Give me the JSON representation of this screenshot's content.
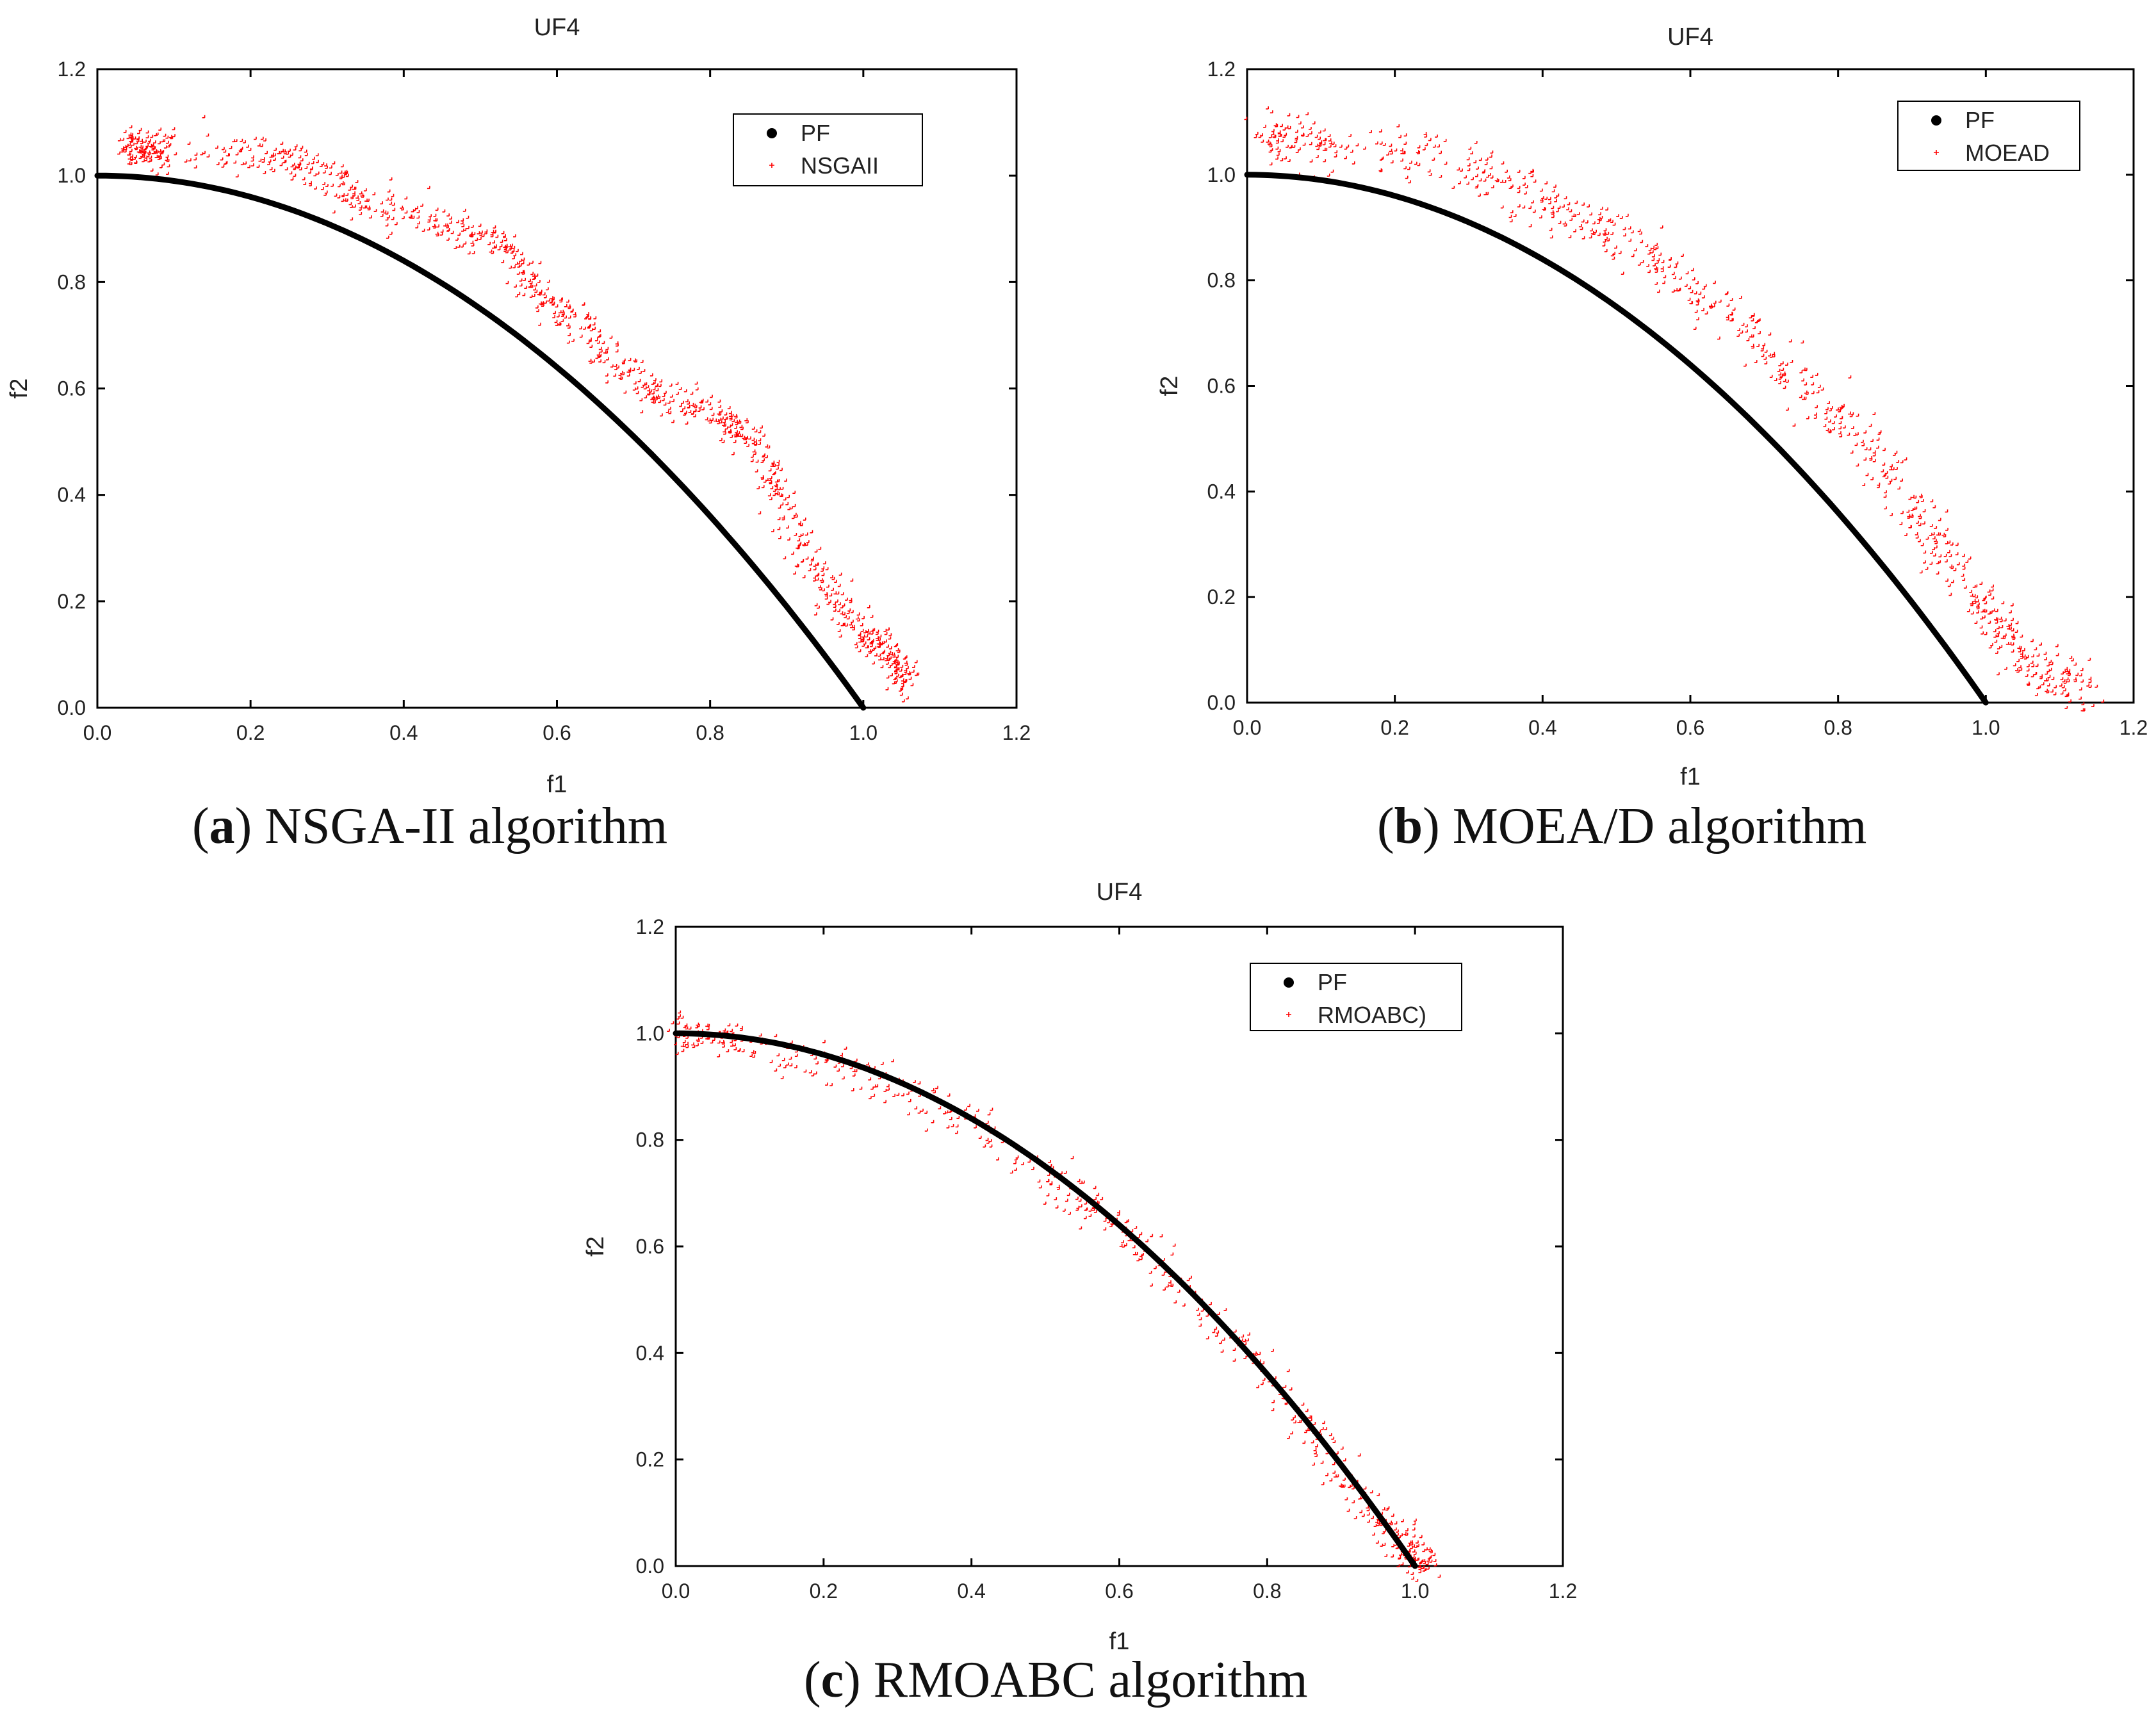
{
  "figure": {
    "captions": [
      {
        "letter": "a",
        "open": "(",
        "close": ")",
        "text": " NSGA-II algorithm"
      },
      {
        "letter": "b",
        "open": "(",
        "close": ")",
        "text": " MOEA/D algorithm"
      },
      {
        "letter": "c",
        "open": "(",
        "close": ")",
        "text": " RMOABC algorithm"
      }
    ]
  },
  "colors": {
    "pf": "#000000",
    "algo": "#ff0000",
    "axis": "#000000"
  },
  "chart_data": [
    {
      "type": "scatter",
      "title": "UF4",
      "xlabel": "f1",
      "ylabel": "f2",
      "xlim": [
        0.0,
        1.2
      ],
      "ylim": [
        0.0,
        1.2
      ],
      "xticks": [
        "0.0",
        "0.2",
        "0.4",
        "0.6",
        "0.8",
        "1.0",
        "1.2"
      ],
      "yticks": [
        "0.0",
        "0.2",
        "0.4",
        "0.6",
        "0.8",
        "1.0",
        "1.2"
      ],
      "legend_position": "top-right",
      "series": [
        {
          "name": "PF",
          "marker": "dot",
          "function": "f2 = 1 - f1^2",
          "x_range": [
            0.0,
            1.0
          ]
        },
        {
          "name": "NSGAII",
          "marker": "cross",
          "points": [
            [
              0.04,
              1.06
            ],
            [
              0.05,
              1.05
            ],
            [
              0.07,
              1.05
            ],
            [
              0.09,
              1.045
            ],
            [
              0.2,
              1.035
            ],
            [
              0.25,
              1.025
            ],
            [
              0.29,
              1.02
            ],
            [
              0.33,
              0.96
            ],
            [
              0.38,
              0.935
            ],
            [
              0.44,
              0.915
            ],
            [
              0.5,
              0.88
            ],
            [
              0.54,
              0.86
            ],
            [
              0.56,
              0.8
            ],
            [
              0.6,
              0.75
            ],
            [
              0.64,
              0.72
            ],
            [
              0.68,
              0.64
            ],
            [
              0.72,
              0.59
            ],
            [
              0.76,
              0.575
            ],
            [
              0.81,
              0.55
            ],
            [
              0.84,
              0.52
            ],
            [
              0.87,
              0.47
            ],
            [
              0.89,
              0.4
            ],
            [
              0.92,
              0.3
            ],
            [
              0.95,
              0.23
            ],
            [
              0.98,
              0.17
            ],
            [
              1.01,
              0.13
            ],
            [
              1.03,
              0.1
            ],
            [
              1.05,
              0.06
            ],
            [
              1.06,
              0.045
            ]
          ],
          "spread": 0.018
        }
      ]
    },
    {
      "type": "scatter",
      "title": "UF4",
      "xlabel": "f1",
      "ylabel": "f2",
      "xlim": [
        0.0,
        1.2
      ],
      "ylim": [
        0.0,
        1.2
      ],
      "xticks": [
        "0.0",
        "0.2",
        "0.4",
        "0.6",
        "0.8",
        "1.0",
        "1.2"
      ],
      "yticks": [
        "0.0",
        "0.2",
        "0.4",
        "0.6",
        "0.8",
        "1.0",
        "1.2"
      ],
      "legend_position": "top-right",
      "series": [
        {
          "name": "PF",
          "marker": "dot",
          "function": "f2 = 1 - f1^2",
          "x_range": [
            0.0,
            1.0
          ]
        },
        {
          "name": "MOEAD",
          "marker": "cross",
          "points": [
            [
              0.03,
              1.08
            ],
            [
              0.05,
              1.06
            ],
            [
              0.1,
              1.05
            ],
            [
              0.2,
              1.04
            ],
            [
              0.3,
              1.01
            ],
            [
              0.36,
              0.98
            ],
            [
              0.42,
              0.94
            ],
            [
              0.48,
              0.9
            ],
            [
              0.54,
              0.86
            ],
            [
              0.6,
              0.79
            ],
            [
              0.66,
              0.73
            ],
            [
              0.72,
              0.64
            ],
            [
              0.78,
              0.57
            ],
            [
              0.84,
              0.49
            ],
            [
              0.88,
              0.4
            ],
            [
              0.92,
              0.32
            ],
            [
              0.96,
              0.25
            ],
            [
              1.0,
              0.18
            ],
            [
              1.03,
              0.12
            ],
            [
              1.06,
              0.06
            ],
            [
              1.1,
              0.045
            ],
            [
              1.14,
              0.035
            ]
          ],
          "spread": 0.025
        }
      ]
    },
    {
      "type": "scatter",
      "title": "UF4",
      "xlabel": "f1",
      "ylabel": "f2",
      "xlim": [
        0.0,
        1.2
      ],
      "ylim": [
        0.0,
        1.2
      ],
      "xticks": [
        "0.0",
        "0.2",
        "0.4",
        "0.6",
        "0.8",
        "1.0",
        "1.2"
      ],
      "yticks": [
        "0.0",
        "0.2",
        "0.4",
        "0.6",
        "0.8",
        "1.0",
        "1.2"
      ],
      "legend_position": "top-right",
      "series": [
        {
          "name": "PF",
          "marker": "dot",
          "function": "f2 = 1 - f1^2",
          "x_range": [
            0.0,
            1.0
          ]
        },
        {
          "name": "RMOABC)",
          "marker": "cross",
          "points": [
            [
              0.0,
              0.99
            ],
            [
              0.04,
              1.0
            ],
            [
              0.1,
              0.97
            ],
            [
              0.2,
              0.95
            ],
            [
              0.3,
              0.9
            ],
            [
              0.4,
              0.83
            ],
            [
              0.5,
              0.74
            ],
            [
              0.56,
              0.68
            ],
            [
              0.62,
              0.61
            ],
            [
              0.7,
              0.5
            ],
            [
              0.78,
              0.4
            ],
            [
              0.85,
              0.27
            ],
            [
              0.9,
              0.18
            ],
            [
              0.95,
              0.09
            ],
            [
              0.98,
              0.04
            ],
            [
              1.0,
              0.01
            ],
            [
              1.02,
              0.005
            ]
          ],
          "spread": 0.02
        }
      ]
    }
  ]
}
